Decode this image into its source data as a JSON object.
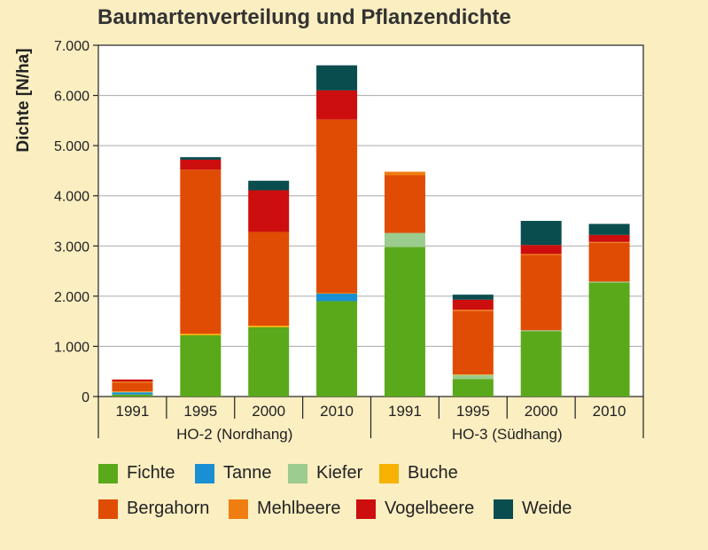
{
  "chart_data": {
    "type": "bar",
    "stacked": true,
    "title": "Baumartenverteilung und Pflanzendichte",
    "ylabel": "Dichte [N/ha]",
    "xlabel": "",
    "ylim": [
      0,
      7000
    ],
    "yticks": [
      0,
      1000,
      2000,
      3000,
      4000,
      5000,
      6000,
      7000
    ],
    "ytick_labels": [
      "0",
      "1.000",
      "2.000",
      "3.000",
      "4.000",
      "5.000",
      "6.000",
      "7.000"
    ],
    "grid": true,
    "categories": [
      "1991",
      "1995",
      "2000",
      "2010",
      "1991",
      "1995",
      "2000",
      "2010"
    ],
    "groups": [
      {
        "label": "HO-2 (Nordhang)",
        "span": [
          0,
          3
        ]
      },
      {
        "label": "HO-3 (Südhang)",
        "span": [
          4,
          7
        ]
      }
    ],
    "series": [
      {
        "name": "Fichte",
        "color": "#5aa91a",
        "values": [
          40,
          1220,
          1380,
          1900,
          2980,
          350,
          1300,
          2270
        ]
      },
      {
        "name": "Tanne",
        "color": "#1a8fd4",
        "values": [
          40,
          0,
          0,
          150,
          0,
          0,
          0,
          0
        ]
      },
      {
        "name": "Kiefer",
        "color": "#9ccc8e",
        "values": [
          10,
          0,
          0,
          0,
          280,
          80,
          20,
          20
        ]
      },
      {
        "name": "Buche",
        "color": "#f7b200",
        "values": [
          10,
          30,
          30,
          10,
          0,
          10,
          0,
          0
        ]
      },
      {
        "name": "Bergahorn",
        "color": "#e04c04",
        "values": [
          180,
          3270,
          1870,
          3460,
          1150,
          1270,
          1500,
          770
        ]
      },
      {
        "name": "Mehlbeere",
        "color": "#f07d12",
        "values": [
          20,
          0,
          0,
          0,
          70,
          20,
          20,
          20
        ]
      },
      {
        "name": "Vogelbeere",
        "color": "#cd0e0e",
        "values": [
          40,
          200,
          830,
          580,
          0,
          200,
          180,
          140
        ]
      },
      {
        "name": "Weide",
        "color": "#0a4d4f",
        "values": [
          0,
          50,
          190,
          500,
          0,
          100,
          480,
          220
        ]
      }
    ],
    "legend_position": "bottom"
  },
  "colors": {
    "background": "#fbeec1",
    "plot_background": "#ffffff",
    "grid": "#aaaaaa",
    "axis": "#222222"
  }
}
